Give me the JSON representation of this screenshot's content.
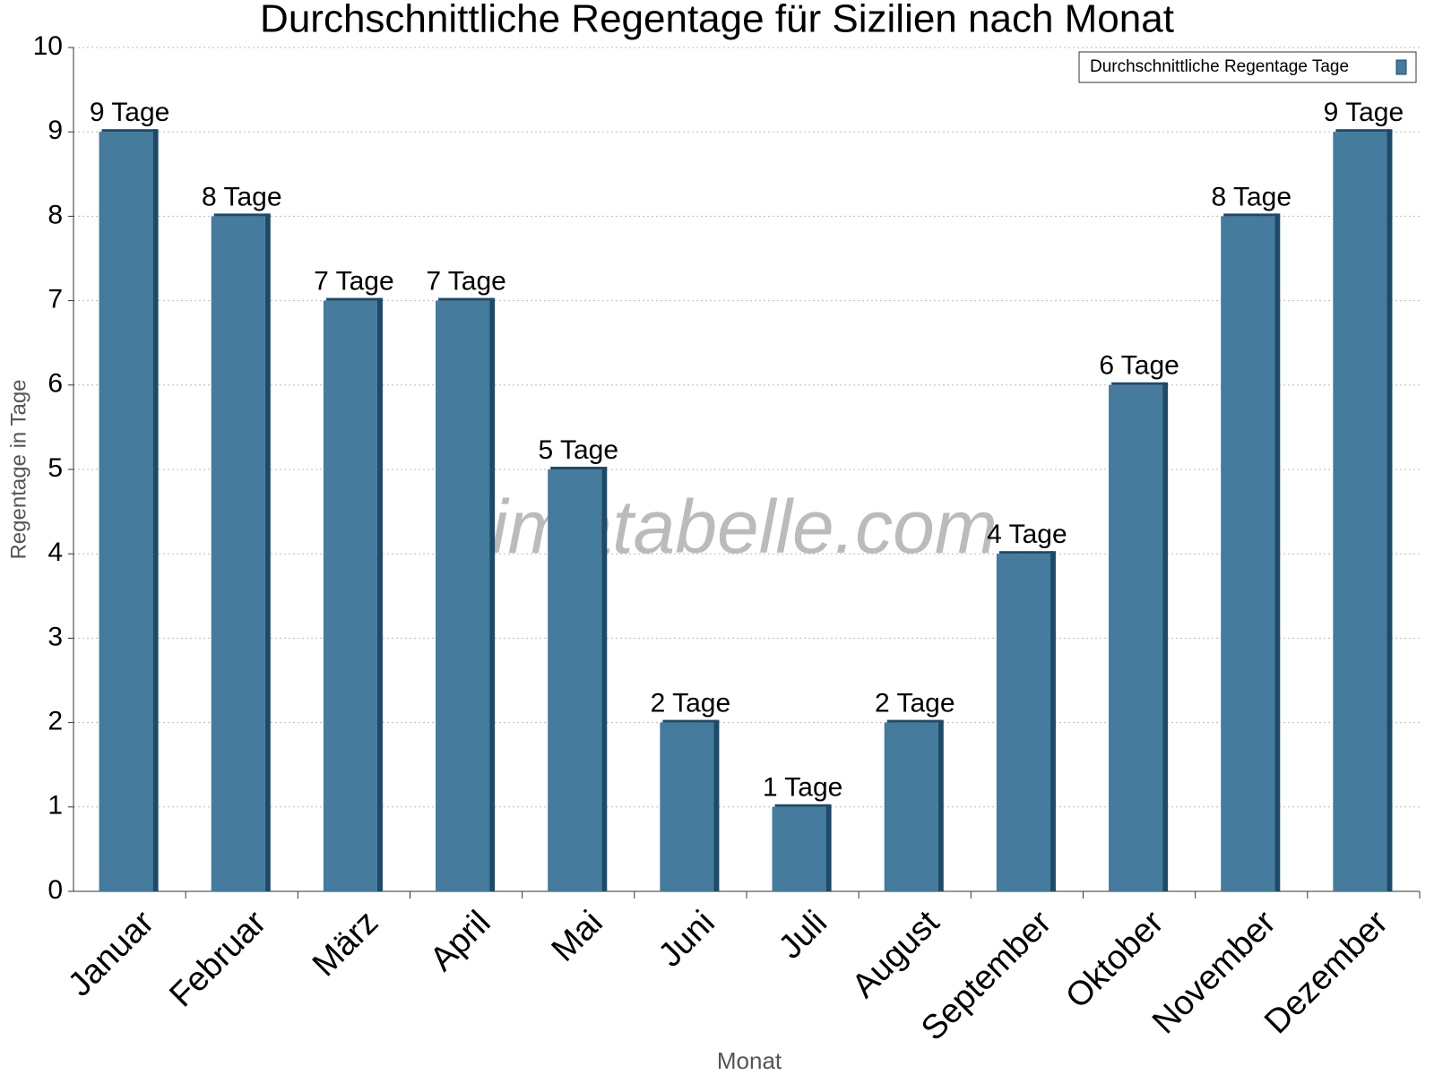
{
  "chart_data": {
    "type": "bar",
    "title": "Durchschnittliche Regentage für Sizilien nach Monat",
    "x_label": "Monat",
    "y_label": "Regentage in Tage",
    "watermark": "klimatabelle.com",
    "categories": [
      "Januar",
      "Februar",
      "März",
      "April",
      "Mai",
      "Juni",
      "Juli",
      "August",
      "September",
      "Oktober",
      "November",
      "Dezember"
    ],
    "series": [
      {
        "name": "Durchschnittliche Regentage Tage",
        "color": "#457b9d",
        "values": [
          9,
          8,
          7,
          7,
          5,
          2,
          1,
          2,
          4,
          6,
          8,
          9
        ],
        "value_labels": [
          "9 Tage",
          "8 Tage",
          "7 Tage",
          "7 Tage",
          "5 Tage",
          "2 Tage",
          "1 Tage",
          "2 Tage",
          "4 Tage",
          "6 Tage",
          "8 Tage",
          "9 Tage"
        ]
      }
    ],
    "ylim": [
      0,
      10
    ],
    "yticks": [
      0,
      1,
      2,
      3,
      4,
      5,
      6,
      7,
      8,
      9,
      10
    ],
    "grid": true,
    "legend": "top-right"
  }
}
